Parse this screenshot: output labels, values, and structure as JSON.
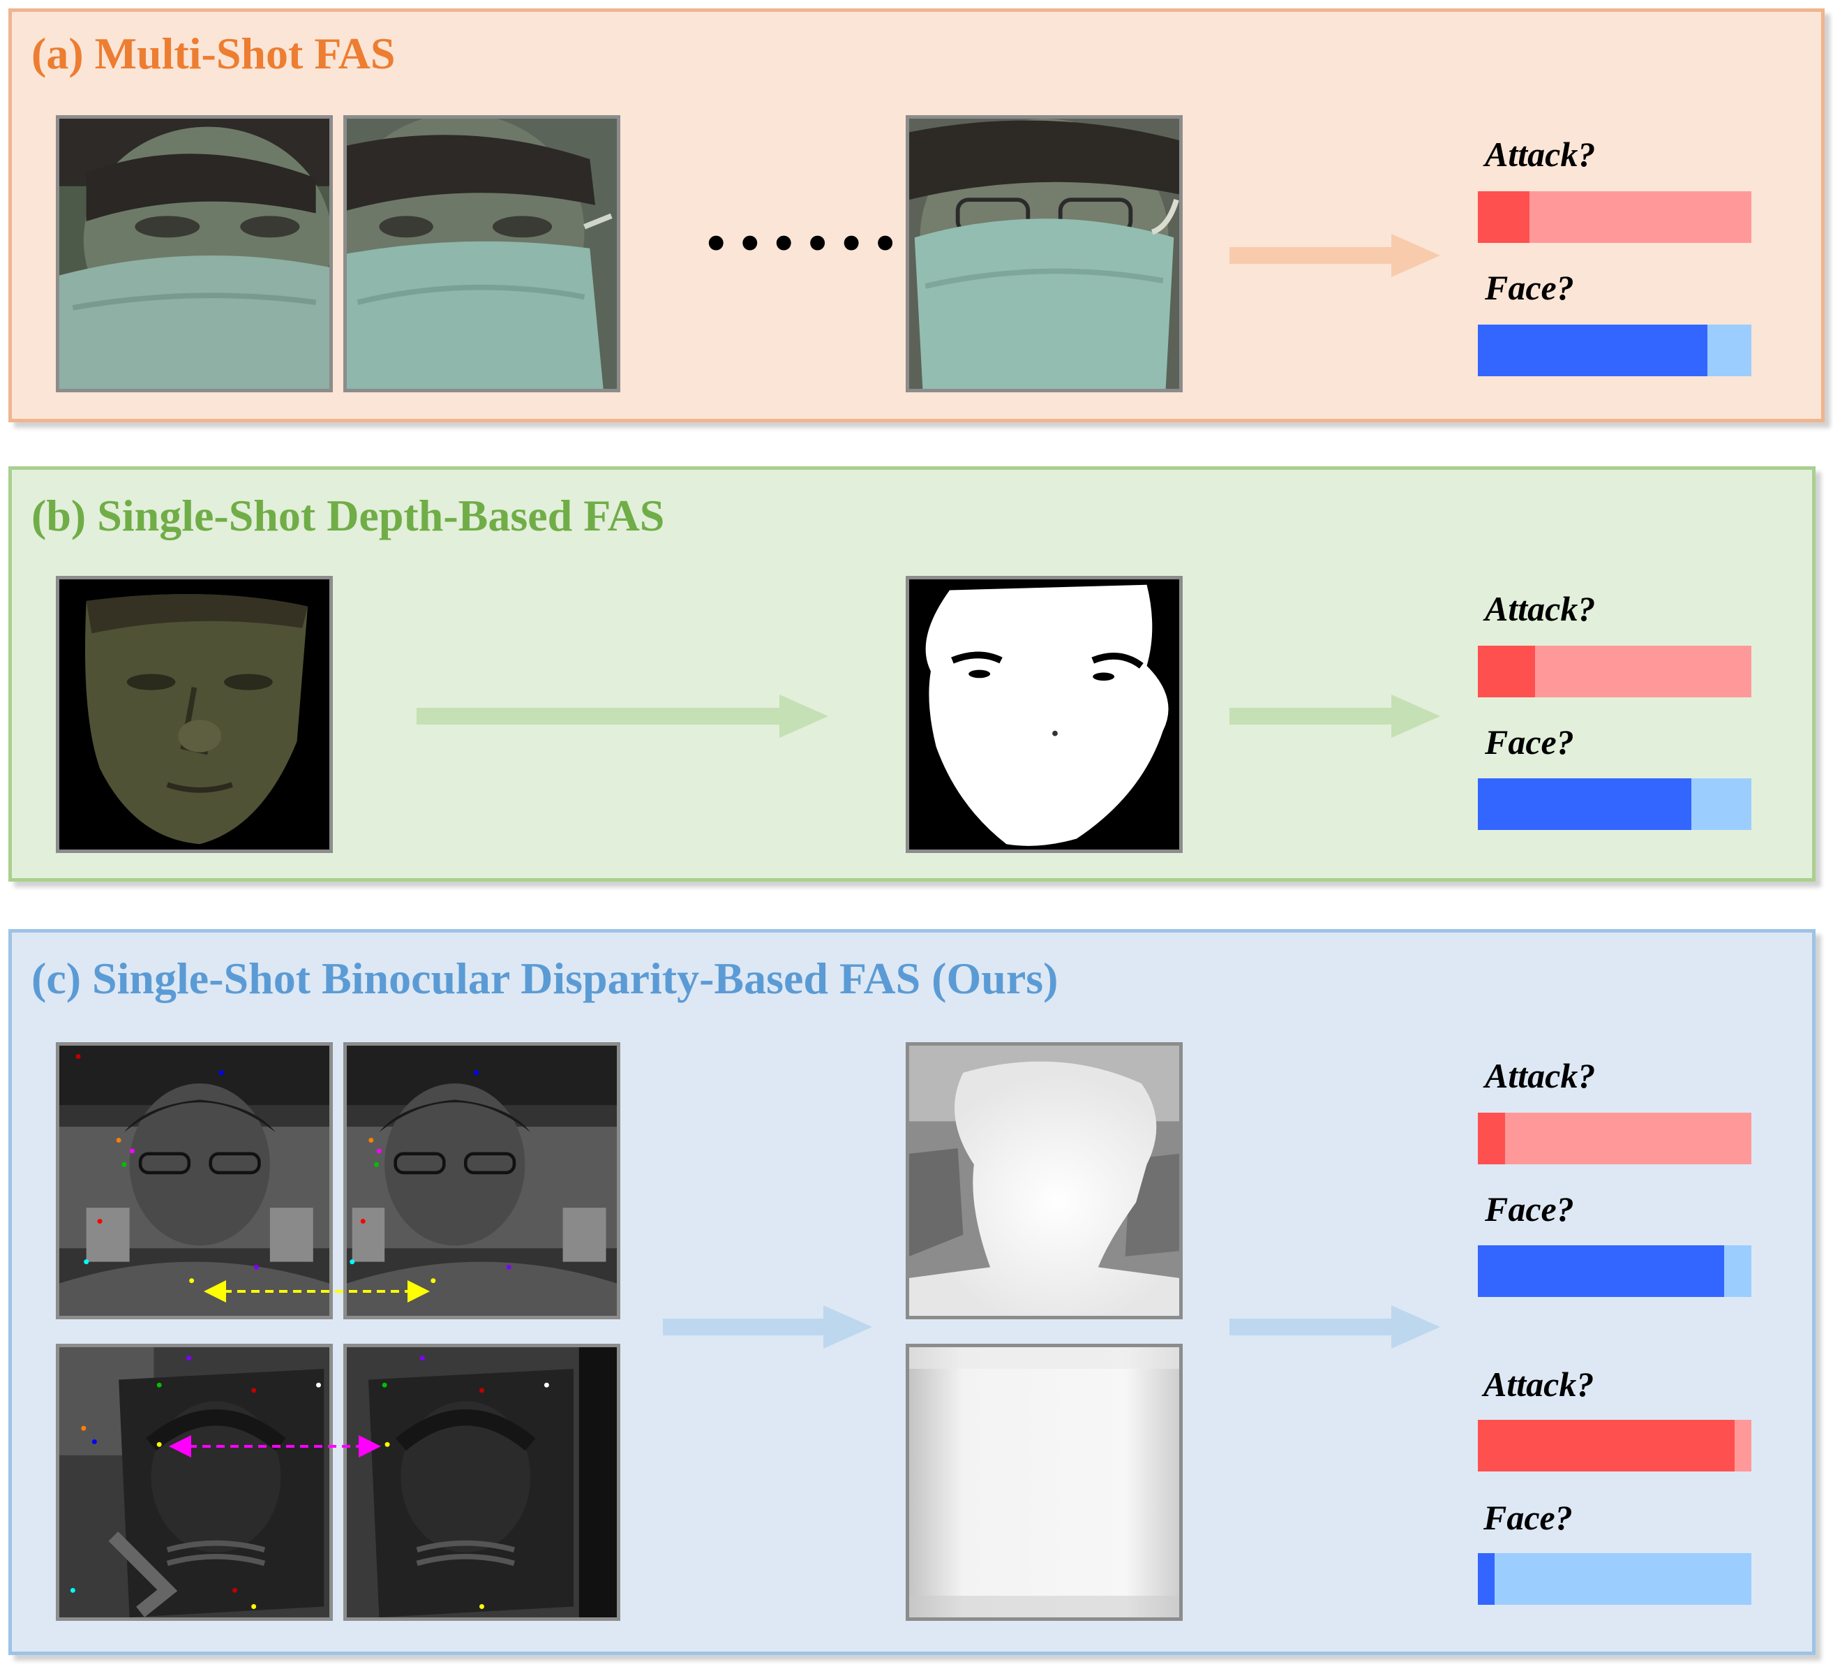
{
  "panels": {
    "a": {
      "title": "(a) Multi-Shot FAS",
      "ellipsis": "•••••••",
      "attack_label": "Attack?",
      "face_label": "Face?",
      "attack_score": 0.19,
      "face_score": 0.84
    },
    "b": {
      "title": "(b) Single-Shot Depth-Based FAS",
      "attack_label": "Attack?",
      "face_label": "Face?",
      "attack_score": 0.21,
      "face_score": 0.78
    },
    "c": {
      "title": "(c) Single-Shot Binocular Disparity-Based FAS (Ours)",
      "live": {
        "attack_label": "Attack?",
        "face_label": "Face?",
        "attack_score": 0.1,
        "face_score": 0.9
      },
      "spoof": {
        "attack_label": "Attack?",
        "face_label": "Face?",
        "attack_score": 0.94,
        "face_score": 0.06
      }
    }
  },
  "colors": {
    "attack_fill": "#ff5050",
    "attack_track": "#ff9999",
    "face_fill": "#3366ff",
    "face_track": "#9ccdff",
    "arrow_a": "#f8cbad",
    "arrow_b": "#c5e0b4",
    "arrow_c": "#bdd7ee",
    "live_disparity_arrow": "#ffff00",
    "spoof_disparity_arrow": "#ff00ff"
  }
}
